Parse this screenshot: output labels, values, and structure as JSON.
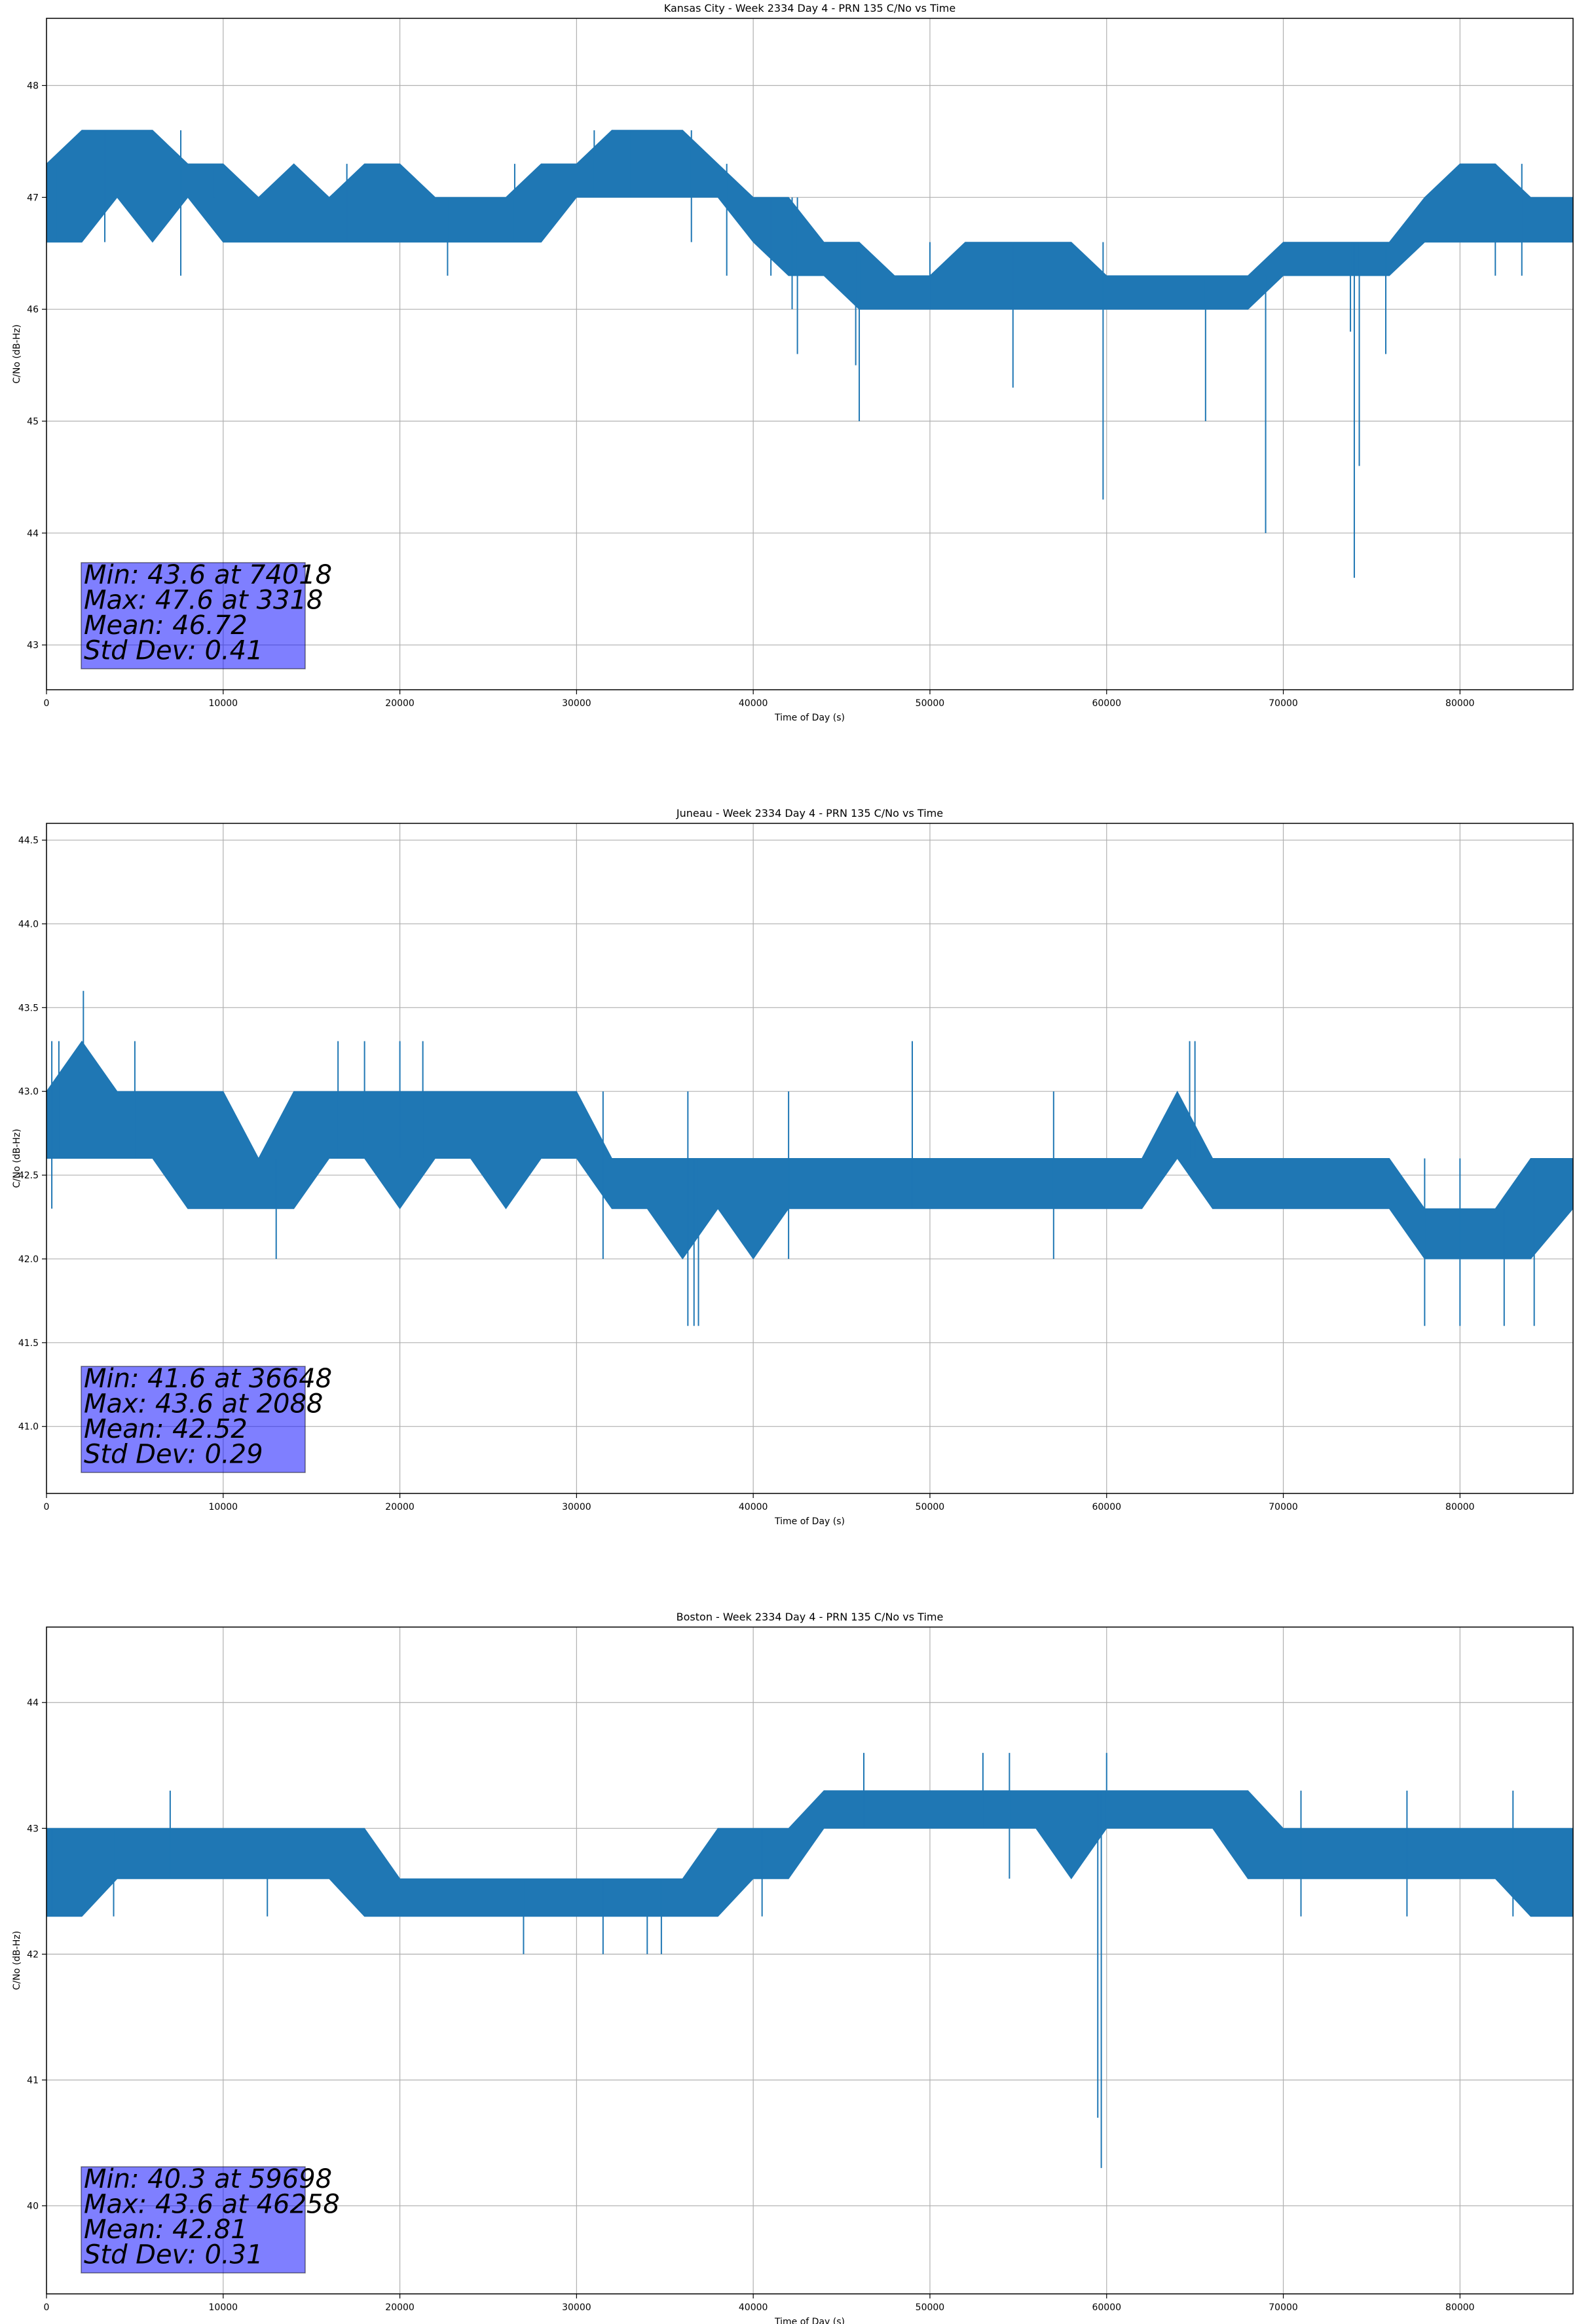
{
  "chart_data": [
    {
      "type": "line",
      "title": "Kansas City - Week 2334 Day 4 - PRN 135 C/No vs Time",
      "xlabel": "Time of Day (s)",
      "ylabel": "C/No (dB-Hz)",
      "xlim": [
        0,
        86400
      ],
      "ylim": [
        42.6,
        48.6
      ],
      "xticks": [
        0,
        10000,
        20000,
        30000,
        40000,
        50000,
        60000,
        70000,
        80000
      ],
      "yticks": [
        43,
        44,
        45,
        46,
        47,
        48
      ],
      "grid": true,
      "line_color": "#1f77b4",
      "stats": [
        "Min: 43.6 at 74018",
        "Max: 47.6 at 3318",
        "Mean: 46.72",
        "Std Dev: 0.41"
      ],
      "band": [
        [
          0,
          46.6,
          47.3
        ],
        [
          2000,
          46.6,
          47.6
        ],
        [
          4000,
          47.0,
          47.6
        ],
        [
          6000,
          46.6,
          47.6
        ],
        [
          8000,
          47.0,
          47.3
        ],
        [
          10000,
          46.6,
          47.3
        ],
        [
          12000,
          46.6,
          47.0
        ],
        [
          14000,
          46.6,
          47.3
        ],
        [
          16000,
          46.6,
          47.0
        ],
        [
          18000,
          46.6,
          47.3
        ],
        [
          20000,
          46.6,
          47.3
        ],
        [
          22000,
          46.6,
          47.0
        ],
        [
          24000,
          46.6,
          47.0
        ],
        [
          26000,
          46.6,
          47.0
        ],
        [
          28000,
          46.6,
          47.3
        ],
        [
          30000,
          47.0,
          47.3
        ],
        [
          32000,
          47.0,
          47.6
        ],
        [
          34000,
          47.0,
          47.6
        ],
        [
          36000,
          47.0,
          47.6
        ],
        [
          38000,
          47.0,
          47.3
        ],
        [
          40000,
          46.6,
          47.0
        ],
        [
          42000,
          46.3,
          47.0
        ],
        [
          44000,
          46.3,
          46.6
        ],
        [
          46000,
          46.0,
          46.6
        ],
        [
          48000,
          46.0,
          46.3
        ],
        [
          50000,
          46.0,
          46.3
        ],
        [
          52000,
          46.0,
          46.6
        ],
        [
          54000,
          46.0,
          46.6
        ],
        [
          56000,
          46.0,
          46.6
        ],
        [
          58000,
          46.0,
          46.6
        ],
        [
          60000,
          46.0,
          46.3
        ],
        [
          62000,
          46.0,
          46.3
        ],
        [
          64000,
          46.0,
          46.3
        ],
        [
          66000,
          46.0,
          46.3
        ],
        [
          68000,
          46.0,
          46.3
        ],
        [
          70000,
          46.3,
          46.6
        ],
        [
          72000,
          46.3,
          46.6
        ],
        [
          74000,
          46.3,
          46.6
        ],
        [
          76000,
          46.3,
          46.6
        ],
        [
          78000,
          46.6,
          47.0
        ],
        [
          80000,
          46.6,
          47.3
        ],
        [
          82000,
          46.6,
          47.3
        ],
        [
          84000,
          46.6,
          47.0
        ],
        [
          86400,
          46.6,
          47.0
        ]
      ],
      "spikes": [
        [
          600,
          47.3,
          46.6
        ],
        [
          3300,
          47.6,
          46.6
        ],
        [
          7600,
          47.6,
          46.3
        ],
        [
          9500,
          47.3,
          47.0
        ],
        [
          12500,
          47.0,
          46.6
        ],
        [
          17000,
          47.3,
          46.6
        ],
        [
          22700,
          47.0,
          46.3
        ],
        [
          26500,
          47.3,
          46.6
        ],
        [
          31000,
          47.6,
          47.0
        ],
        [
          33000,
          47.6,
          47.0
        ],
        [
          36500,
          47.6,
          46.6
        ],
        [
          38500,
          47.3,
          46.3
        ],
        [
          41000,
          47.0,
          46.3
        ],
        [
          42200,
          47.0,
          46.0
        ],
        [
          42500,
          47.0,
          45.6
        ],
        [
          45800,
          46.6,
          45.5
        ],
        [
          46000,
          46.6,
          45.0
        ],
        [
          50000,
          46.6,
          46.0
        ],
        [
          54700,
          46.6,
          45.3
        ],
        [
          59800,
          46.6,
          44.3
        ],
        [
          65600,
          46.3,
          45.0
        ],
        [
          69000,
          46.3,
          44.0
        ],
        [
          73800,
          46.6,
          45.8
        ],
        [
          74018,
          46.6,
          43.6
        ],
        [
          74300,
          46.6,
          44.6
        ],
        [
          75800,
          46.6,
          45.6
        ],
        [
          82000,
          47.3,
          46.3
        ],
        [
          83500,
          47.3,
          46.3
        ]
      ]
    },
    {
      "type": "line",
      "title": "Juneau - Week 2334 Day 4 - PRN 135 C/No vs Time",
      "xlabel": "Time of Day (s)",
      "ylabel": "C/No (dB-Hz)",
      "xlim": [
        0,
        86400
      ],
      "ylim": [
        40.6,
        44.6
      ],
      "xticks": [
        0,
        10000,
        20000,
        30000,
        40000,
        50000,
        60000,
        70000,
        80000
      ],
      "yticks": [
        41.0,
        41.5,
        42.0,
        42.5,
        43.0,
        43.5,
        44.0,
        44.5
      ],
      "tick_labels": [
        "41.0",
        "41.5",
        "42.0",
        "42.5",
        "43.0",
        "43.5",
        "44.0",
        "44.5"
      ],
      "grid": true,
      "line_color": "#1f77b4",
      "stats": [
        "Min: 41.6 at 36648",
        "Max: 43.6 at 2088",
        "Mean: 42.52",
        "Std Dev: 0.29"
      ],
      "band": [
        [
          0,
          42.6,
          43.0
        ],
        [
          2000,
          42.6,
          43.3
        ],
        [
          4000,
          42.6,
          43.0
        ],
        [
          6000,
          42.6,
          43.0
        ],
        [
          8000,
          42.3,
          43.0
        ],
        [
          10000,
          42.3,
          43.0
        ],
        [
          12000,
          42.3,
          42.6
        ],
        [
          14000,
          42.3,
          43.0
        ],
        [
          16000,
          42.6,
          43.0
        ],
        [
          18000,
          42.6,
          43.0
        ],
        [
          20000,
          42.3,
          43.0
        ],
        [
          22000,
          42.6,
          43.0
        ],
        [
          24000,
          42.6,
          43.0
        ],
        [
          26000,
          42.3,
          43.0
        ],
        [
          28000,
          42.6,
          43.0
        ],
        [
          30000,
          42.6,
          43.0
        ],
        [
          32000,
          42.3,
          42.6
        ],
        [
          34000,
          42.3,
          42.6
        ],
        [
          36000,
          42.0,
          42.6
        ],
        [
          38000,
          42.3,
          42.6
        ],
        [
          40000,
          42.0,
          42.6
        ],
        [
          42000,
          42.3,
          42.6
        ],
        [
          44000,
          42.3,
          42.6
        ],
        [
          46000,
          42.3,
          42.6
        ],
        [
          48000,
          42.3,
          42.6
        ],
        [
          50000,
          42.3,
          42.6
        ],
        [
          52000,
          42.3,
          42.6
        ],
        [
          54000,
          42.3,
          42.6
        ],
        [
          56000,
          42.3,
          42.6
        ],
        [
          58000,
          42.3,
          42.6
        ],
        [
          60000,
          42.3,
          42.6
        ],
        [
          62000,
          42.3,
          42.6
        ],
        [
          64000,
          42.6,
          43.0
        ],
        [
          66000,
          42.3,
          42.6
        ],
        [
          68000,
          42.3,
          42.6
        ],
        [
          70000,
          42.3,
          42.6
        ],
        [
          72000,
          42.3,
          42.6
        ],
        [
          74000,
          42.3,
          42.6
        ],
        [
          76000,
          42.3,
          42.6
        ],
        [
          78000,
          42.0,
          42.3
        ],
        [
          80000,
          42.0,
          42.3
        ],
        [
          82000,
          42.0,
          42.3
        ],
        [
          84000,
          42.0,
          42.6
        ],
        [
          86400,
          42.3,
          42.6
        ]
      ],
      "spikes": [
        [
          300,
          43.3,
          42.3
        ],
        [
          700,
          43.3,
          42.6
        ],
        [
          2088,
          43.6,
          42.6
        ],
        [
          5000,
          43.3,
          42.6
        ],
        [
          13000,
          42.6,
          42.0
        ],
        [
          16500,
          43.3,
          42.6
        ],
        [
          18000,
          43.3,
          42.6
        ],
        [
          20000,
          43.3,
          42.6
        ],
        [
          21300,
          43.3,
          42.6
        ],
        [
          31500,
          43.0,
          42.0
        ],
        [
          36300,
          43.0,
          41.6
        ],
        [
          36648,
          42.6,
          41.6
        ],
        [
          36900,
          42.6,
          41.6
        ],
        [
          42000,
          43.0,
          42.0
        ],
        [
          49000,
          43.3,
          42.3
        ],
        [
          57000,
          43.0,
          42.0
        ],
        [
          64700,
          43.3,
          42.6
        ],
        [
          65000,
          43.3,
          42.6
        ],
        [
          78000,
          42.6,
          41.6
        ],
        [
          80000,
          42.6,
          41.6
        ],
        [
          82500,
          42.3,
          41.6
        ],
        [
          84200,
          42.6,
          41.6
        ]
      ]
    },
    {
      "type": "line",
      "title": "Boston - Week 2334 Day 4 - PRN 135 C/No vs Time",
      "xlabel": "Time of Day (s)",
      "ylabel": "C/No (dB-Hz)",
      "xlim": [
        0,
        86400
      ],
      "ylim": [
        39.3,
        44.6
      ],
      "xticks": [
        0,
        10000,
        20000,
        30000,
        40000,
        50000,
        60000,
        70000,
        80000
      ],
      "yticks": [
        40,
        41,
        42,
        43,
        44
      ],
      "grid": true,
      "line_color": "#1f77b4",
      "stats": [
        "Min: 40.3 at 59698",
        "Max: 43.6 at 46258",
        "Mean: 42.81",
        "Std Dev: 0.31"
      ],
      "band": [
        [
          0,
          42.3,
          43.0
        ],
        [
          2000,
          42.3,
          43.0
        ],
        [
          4000,
          42.6,
          43.0
        ],
        [
          6000,
          42.6,
          43.0
        ],
        [
          8000,
          42.6,
          43.0
        ],
        [
          10000,
          42.6,
          43.0
        ],
        [
          12000,
          42.6,
          43.0
        ],
        [
          14000,
          42.6,
          43.0
        ],
        [
          16000,
          42.6,
          43.0
        ],
        [
          18000,
          42.3,
          43.0
        ],
        [
          20000,
          42.3,
          42.6
        ],
        [
          22000,
          42.3,
          42.6
        ],
        [
          24000,
          42.3,
          42.6
        ],
        [
          26000,
          42.3,
          42.6
        ],
        [
          28000,
          42.3,
          42.6
        ],
        [
          30000,
          42.3,
          42.6
        ],
        [
          32000,
          42.3,
          42.6
        ],
        [
          34000,
          42.3,
          42.6
        ],
        [
          36000,
          42.3,
          42.6
        ],
        [
          38000,
          42.3,
          43.0
        ],
        [
          40000,
          42.6,
          43.0
        ],
        [
          42000,
          42.6,
          43.0
        ],
        [
          44000,
          43.0,
          43.3
        ],
        [
          46000,
          43.0,
          43.3
        ],
        [
          48000,
          43.0,
          43.3
        ],
        [
          50000,
          43.0,
          43.3
        ],
        [
          52000,
          43.0,
          43.3
        ],
        [
          54000,
          43.0,
          43.3
        ],
        [
          56000,
          43.0,
          43.3
        ],
        [
          58000,
          42.6,
          43.3
        ],
        [
          60000,
          43.0,
          43.3
        ],
        [
          62000,
          43.0,
          43.3
        ],
        [
          64000,
          43.0,
          43.3
        ],
        [
          66000,
          43.0,
          43.3
        ],
        [
          68000,
          42.6,
          43.3
        ],
        [
          70000,
          42.6,
          43.0
        ],
        [
          72000,
          42.6,
          43.0
        ],
        [
          74000,
          42.6,
          43.0
        ],
        [
          76000,
          42.6,
          43.0
        ],
        [
          78000,
          42.6,
          43.0
        ],
        [
          80000,
          42.6,
          43.0
        ],
        [
          82000,
          42.6,
          43.0
        ],
        [
          84000,
          42.3,
          43.0
        ],
        [
          86400,
          42.3,
          43.0
        ]
      ],
      "spikes": [
        [
          300,
          43.0,
          42.3
        ],
        [
          3800,
          43.0,
          42.3
        ],
        [
          7000,
          43.3,
          42.6
        ],
        [
          12500,
          43.0,
          42.3
        ],
        [
          27000,
          42.6,
          42.0
        ],
        [
          31500,
          42.6,
          42.0
        ],
        [
          34000,
          42.6,
          42.0
        ],
        [
          34800,
          42.6,
          42.0
        ],
        [
          40500,
          43.0,
          42.3
        ],
        [
          46258,
          43.6,
          43.0
        ],
        [
          53000,
          43.6,
          43.0
        ],
        [
          54500,
          43.6,
          42.6
        ],
        [
          59500,
          43.3,
          40.7
        ],
        [
          59698,
          43.3,
          40.3
        ],
        [
          60000,
          43.6,
          43.0
        ],
        [
          71000,
          43.3,
          42.3
        ],
        [
          77000,
          43.3,
          42.3
        ],
        [
          83000,
          43.3,
          42.3
        ]
      ]
    }
  ]
}
